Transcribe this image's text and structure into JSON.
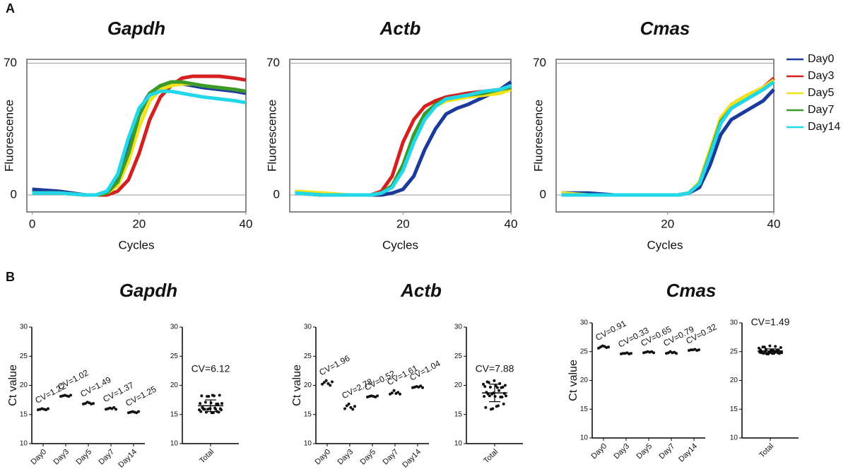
{
  "panels": [
    "A",
    "B"
  ],
  "chart_data": [
    {
      "type": "line",
      "title": "Gapdh",
      "xlabel": "Cycles",
      "ylabel": "Fluorescence",
      "x": [
        0,
        5,
        10,
        12,
        14,
        16,
        18,
        20,
        22,
        24,
        26,
        28,
        30,
        32,
        35,
        38,
        40
      ],
      "series": [
        {
          "name": "Day0",
          "color": "#1a3a9c",
          "values": [
            3,
            2,
            0,
            0,
            2,
            10,
            28,
            45,
            54,
            58,
            59,
            59,
            58,
            57,
            56,
            55,
            54
          ]
        },
        {
          "name": "Day3",
          "color": "#d42020",
          "values": [
            1,
            1,
            0,
            0,
            0,
            2,
            8,
            22,
            40,
            52,
            58,
            62,
            63,
            63,
            63,
            62,
            61
          ]
        },
        {
          "name": "Day5",
          "color": "#f2e21a",
          "values": [
            1,
            1,
            0,
            0,
            1,
            5,
            18,
            36,
            50,
            56,
            58,
            59,
            59,
            58,
            57,
            56,
            55
          ]
        },
        {
          "name": "Day7",
          "color": "#3a9a2a",
          "values": [
            1,
            1,
            0,
            0,
            1,
            7,
            22,
            42,
            54,
            58,
            60,
            60,
            59,
            58,
            57,
            56,
            55
          ]
        },
        {
          "name": "Day14",
          "color": "#22d8e8",
          "values": [
            1,
            1,
            0,
            0,
            2,
            11,
            30,
            46,
            53,
            55,
            55,
            54,
            53,
            52,
            51,
            50,
            49
          ]
        }
      ],
      "xlim": [
        -1,
        40
      ],
      "ylim": [
        -9,
        72
      ],
      "xticks": [
        0,
        20,
        40
      ],
      "yticks": [
        0,
        70
      ],
      "grid": true
    },
    {
      "type": "line",
      "title": "Actb",
      "xlabel": "Cycles",
      "ylabel": "Fluorescence",
      "x": [
        0,
        5,
        10,
        12,
        14,
        16,
        18,
        20,
        22,
        24,
        26,
        28,
        30,
        32,
        35,
        38,
        40
      ],
      "series": [
        {
          "name": "Day0",
          "color": "#1a3a9c",
          "values": [
            1,
            0,
            0,
            0,
            0,
            0,
            1,
            3,
            10,
            24,
            35,
            43,
            46,
            48,
            52,
            56,
            60
          ]
        },
        {
          "name": "Day3",
          "color": "#d42020",
          "values": [
            1,
            0,
            0,
            0,
            0,
            2,
            10,
            28,
            40,
            47,
            50,
            52,
            53,
            54,
            55,
            56,
            58
          ]
        },
        {
          "name": "Day5",
          "color": "#f2e21a",
          "values": [
            2,
            1,
            0,
            0,
            0,
            1,
            4,
            14,
            28,
            40,
            47,
            50,
            51,
            52,
            53,
            54,
            56
          ]
        },
        {
          "name": "Day7",
          "color": "#3a9a2a",
          "values": [
            1,
            0,
            0,
            0,
            0,
            1,
            5,
            16,
            32,
            43,
            48,
            51,
            52,
            53,
            54,
            56,
            57
          ]
        },
        {
          "name": "Day14",
          "color": "#22d8e8",
          "values": [
            1,
            0,
            0,
            0,
            0,
            1,
            4,
            13,
            28,
            40,
            47,
            51,
            52,
            53,
            55,
            56,
            58
          ]
        }
      ],
      "xlim": [
        -1,
        40
      ],
      "ylim": [
        -9,
        72
      ],
      "xticks": [
        20,
        40
      ],
      "yticks": [
        0,
        70
      ],
      "grid": true
    },
    {
      "type": "line",
      "title": "Cmas",
      "xlabel": "Cycles",
      "ylabel": "Fluorescence",
      "x": [
        0,
        5,
        10,
        12,
        14,
        16,
        18,
        20,
        22,
        24,
        26,
        28,
        30,
        32,
        35,
        38,
        40
      ],
      "series": [
        {
          "name": "Day0",
          "color": "#1a3a9c",
          "values": [
            1,
            1,
            0,
            0,
            0,
            0,
            0,
            0,
            0,
            1,
            4,
            16,
            32,
            40,
            45,
            50,
            56
          ]
        },
        {
          "name": "Day3",
          "color": "#d42020",
          "values": [
            0,
            0,
            0,
            0,
            0,
            0,
            0,
            0,
            0,
            1,
            6,
            22,
            40,
            48,
            53,
            57,
            62
          ]
        },
        {
          "name": "Day5",
          "color": "#f2e21a",
          "values": [
            1,
            0,
            0,
            0,
            0,
            0,
            0,
            0,
            0,
            1,
            7,
            24,
            41,
            48,
            53,
            57,
            61
          ]
        },
        {
          "name": "Day7",
          "color": "#3a9a2a",
          "values": [
            0,
            0,
            0,
            0,
            0,
            0,
            0,
            0,
            0,
            1,
            6,
            22,
            39,
            46,
            51,
            56,
            60
          ]
        },
        {
          "name": "Day14",
          "color": "#22d8e8",
          "values": [
            0,
            0,
            0,
            0,
            0,
            0,
            0,
            0,
            0,
            1,
            6,
            21,
            38,
            46,
            51,
            56,
            60
          ]
        }
      ],
      "xlim": [
        -1,
        40
      ],
      "ylim": [
        -9,
        72
      ],
      "xticks": [
        20,
        40
      ],
      "yticks": [
        0,
        70
      ],
      "grid": true,
      "legend": "right"
    },
    {
      "type": "strip",
      "title": "Gapdh",
      "ylabel": "Ct value",
      "categories": [
        "Day0",
        "Day3",
        "Day5",
        "Day7",
        "Day14"
      ],
      "values": [
        [
          15.8,
          15.9,
          16.0,
          15.9,
          15.8,
          16.0
        ],
        [
          18.1,
          18.2,
          18.3,
          18.2,
          18.1,
          18.3
        ],
        [
          16.8,
          16.9,
          17.1,
          17.0,
          16.8,
          16.9
        ],
        [
          15.9,
          16.0,
          16.1,
          16.0,
          16.2,
          15.9
        ],
        [
          15.3,
          15.4,
          15.5,
          15.4,
          15.3,
          15.5
        ]
      ],
      "cv_labels": [
        "CV=1.22",
        "CV=1.02",
        "CV=1.49",
        "CV=1.37",
        "CV=1.25"
      ],
      "total": {
        "label": "Total",
        "cv_label": "CV=6.12",
        "mean": 16.5,
        "sd": 1.0
      },
      "ylim": [
        10,
        30
      ],
      "yticks": [
        10,
        15,
        20,
        25,
        30
      ]
    },
    {
      "type": "strip",
      "title": "Actb",
      "ylabel": "Ct value",
      "categories": [
        "Day0",
        "Day3",
        "Day5",
        "Day7",
        "Day14"
      ],
      "values": [
        [
          20.2,
          20.5,
          20.8,
          20.3,
          20.0,
          20.6
        ],
        [
          16.0,
          16.5,
          16.8,
          16.2,
          15.9,
          16.4
        ],
        [
          18.0,
          18.1,
          18.2,
          18.1,
          18.0,
          18.2
        ],
        [
          18.5,
          18.7,
          19.1,
          18.6,
          18.8,
          18.5
        ],
        [
          19.6,
          19.7,
          19.8,
          19.7,
          19.9,
          19.6
        ]
      ],
      "cv_labels": [
        "CV=1.96",
        "CV=2.78",
        "CV=0.52",
        "CV=1.61",
        "CV=1.04"
      ],
      "total": {
        "label": "Total",
        "cv_label": "CV=7.88",
        "mean": 18.7,
        "sd": 1.5
      },
      "ylim": [
        10,
        30
      ],
      "yticks": [
        10,
        15,
        20,
        25,
        30
      ]
    },
    {
      "type": "strip",
      "title": "Cmas",
      "ylabel": "Ct value",
      "categories": [
        "Day0",
        "Day3",
        "Day5",
        "Day7",
        "Day14"
      ],
      "values": [
        [
          25.6,
          25.8,
          26.0,
          25.9,
          25.7,
          25.8
        ],
        [
          24.6,
          24.7,
          24.7,
          24.8,
          24.6,
          24.7
        ],
        [
          24.8,
          24.9,
          25.0,
          24.9,
          25.0,
          24.8
        ],
        [
          24.7,
          24.8,
          25.0,
          24.8,
          24.9,
          24.7
        ],
        [
          25.2,
          25.3,
          25.3,
          25.4,
          25.2,
          25.3
        ]
      ],
      "cv_labels": [
        "CV=0.91",
        "CV=0.33",
        "CV=0.65",
        "CV=0.79",
        "CV=0.32"
      ],
      "total": {
        "label": "Total",
        "cv_label": "CV=1.49",
        "mean": 25.1,
        "sd": 0.37
      },
      "ylim": [
        10,
        30
      ],
      "yticks": [
        10,
        15,
        20,
        25,
        30
      ]
    }
  ]
}
